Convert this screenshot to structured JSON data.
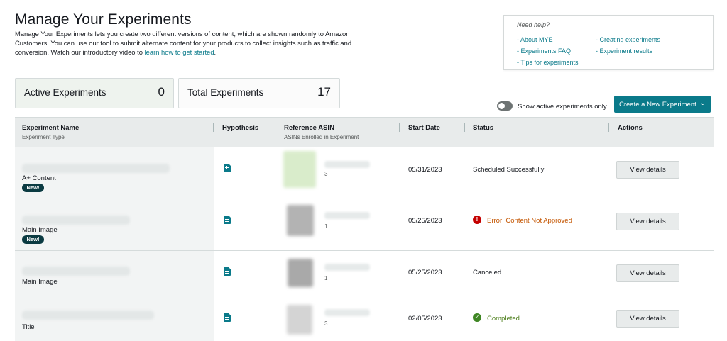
{
  "page": {
    "title": "Manage Your Experiments",
    "intro_text": "Manage Your Experiments lets you create two different versions of content, which are shown randomly to Amazon Customers. You can use our tool to submit alternate content for your products to collect insights such as traffic and conversion. Watch our introductory video to ",
    "intro_link": "learn how to get started",
    "intro_end": "."
  },
  "help": {
    "title": "Need help?",
    "links_left": [
      "- About MYE",
      "- Experiments FAQ",
      "- Tips for experiments"
    ],
    "links_right": [
      "- Creating experiments",
      "- Experiment results"
    ]
  },
  "stats": {
    "active_label": "Active Experiments",
    "active_value": "0",
    "total_label": "Total Experiments",
    "total_value": "17"
  },
  "controls": {
    "toggle_label": "Show active experiments only",
    "toggle_on": false,
    "create_button": "Create a New Experiment",
    "create_chevron": "⌄"
  },
  "table": {
    "headers": {
      "name": "Experiment Name",
      "name_sub": "Experiment Type",
      "hypothesis": "Hypothesis",
      "asin": "Reference ASIN",
      "asin_sub": "ASINs Enrolled in Experiment",
      "start_date": "Start Date",
      "status": "Status",
      "actions": "Actions"
    },
    "rows": [
      {
        "type": "A+ Content",
        "badge": "New!",
        "asin_count": "3",
        "start_date": "05/31/2023",
        "status": "Scheduled Successfully",
        "status_kind": "neutral",
        "action": "View details"
      },
      {
        "type": "Main Image",
        "badge": "New!",
        "asin_count": "1",
        "start_date": "05/25/2023",
        "status": "Error: Content Not Approved",
        "status_kind": "error",
        "action": "View details"
      },
      {
        "type": "Main Image",
        "badge": "",
        "asin_count": "1",
        "start_date": "05/25/2023",
        "status": "Canceled",
        "status_kind": "neutral",
        "action": "View details"
      },
      {
        "type": "Title",
        "badge": "",
        "asin_count": "3",
        "start_date": "02/05/2023",
        "status": "Completed",
        "status_kind": "success",
        "action": "View details"
      }
    ]
  },
  "colors": {
    "accent": "#0a7a8a",
    "error": "#c40000",
    "success": "#3f8624",
    "badge": "#0b3b42"
  }
}
